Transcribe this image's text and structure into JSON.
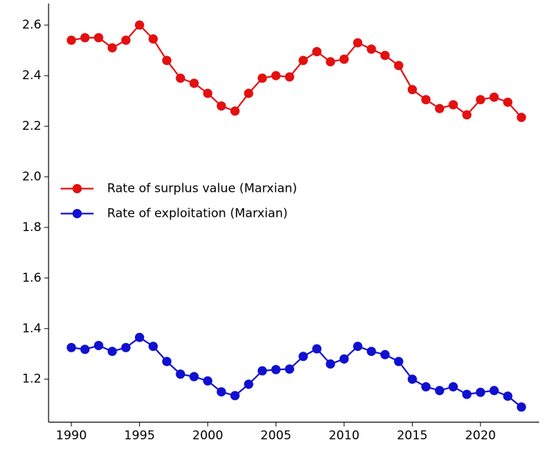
{
  "chart_data": {
    "type": "line",
    "x": [
      1990,
      1991,
      1992,
      1993,
      1994,
      1995,
      1996,
      1997,
      1998,
      1999,
      2000,
      2001,
      2002,
      2003,
      2004,
      2005,
      2006,
      2007,
      2008,
      2009,
      2010,
      2011,
      2012,
      2013,
      2014,
      2015,
      2016,
      2017,
      2018,
      2019,
      2020,
      2021,
      2022,
      2023
    ],
    "series": [
      {
        "name": "Rate of surplus value (Marxian)",
        "color": "#e31010",
        "values": [
          2.54,
          2.55,
          2.55,
          2.51,
          2.54,
          2.6,
          2.545,
          2.46,
          2.39,
          2.37,
          2.33,
          2.28,
          2.26,
          2.33,
          2.39,
          2.4,
          2.395,
          2.46,
          2.495,
          2.455,
          2.465,
          2.53,
          2.505,
          2.48,
          2.44,
          2.345,
          2.305,
          2.27,
          2.285,
          2.245,
          2.305,
          2.315,
          2.295,
          2.235
        ]
      },
      {
        "name": "Rate of exploitation (Marxian)",
        "color": "#1010d0",
        "values": [
          1.325,
          1.318,
          1.333,
          1.31,
          1.325,
          1.365,
          1.33,
          1.27,
          1.22,
          1.21,
          1.193,
          1.15,
          1.135,
          1.18,
          1.233,
          1.238,
          1.24,
          1.29,
          1.32,
          1.26,
          1.28,
          1.33,
          1.31,
          1.297,
          1.27,
          1.2,
          1.17,
          1.155,
          1.17,
          1.14,
          1.148,
          1.155,
          1.133,
          1.09
        ]
      }
    ],
    "xlim": [
      1988.33,
      2024.3
    ],
    "ylim": [
      1.03,
      2.685
    ],
    "xticks": [
      1990,
      1995,
      2000,
      2005,
      2010,
      2015,
      2020
    ],
    "yticks": [
      1.2,
      1.4,
      1.6,
      1.8,
      {
        "value": 2,
        "label": "2.0"
      },
      2.2,
      2.4,
      2.6
    ],
    "grid": false,
    "legend": "center left"
  }
}
